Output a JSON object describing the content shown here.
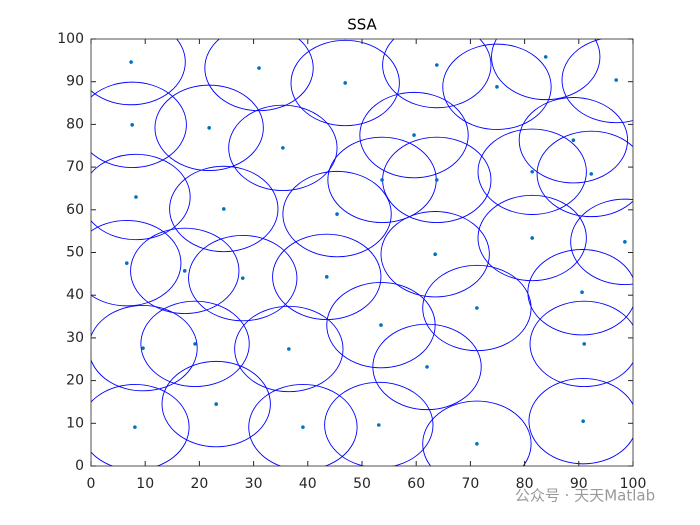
{
  "chart_data": {
    "type": "scatter",
    "title": "SSA",
    "xlim": [
      0,
      100
    ],
    "ylim": [
      0,
      100
    ],
    "xticks": [
      0,
      10,
      20,
      30,
      40,
      50,
      60,
      70,
      80,
      90,
      100
    ],
    "yticks": [
      0,
      10,
      20,
      30,
      40,
      50,
      60,
      70,
      80,
      90,
      100
    ],
    "grid": false,
    "radius": 10,
    "circle_color": "#0000ff",
    "series": [
      {
        "color": "#0072bd",
        "x": [
          7.4,
          31.0,
          46.9,
          63.8,
          74.9,
          83.9,
          96.9,
          7.6,
          21.8,
          35.4,
          59.6,
          53.7,
          63.8,
          81.4,
          89.0,
          92.3,
          8.3,
          24.5,
          45.4,
          63.5,
          81.4,
          98.5,
          6.6,
          17.3,
          28.0,
          43.5,
          90.6,
          71.2,
          53.5,
          9.6,
          19.2,
          36.5,
          62.0,
          91.0,
          23.1,
          8.1,
          39.1,
          53.1,
          71.2,
          90.8
        ],
        "y": [
          94.6,
          93.2,
          89.7,
          93.9,
          88.8,
          95.8,
          90.4,
          79.9,
          79.2,
          74.5,
          77.5,
          67.0,
          67.0,
          68.9,
          76.3,
          68.4,
          63.0,
          60.2,
          59.0,
          49.6,
          53.4,
          52.5,
          47.5,
          45.7,
          44.0,
          44.3,
          40.7,
          37.0,
          33.0,
          27.6,
          28.6,
          27.4,
          23.2,
          28.6,
          14.5,
          9.1,
          9.1,
          9.6,
          5.2,
          10.5
        ]
      }
    ],
    "watermark": "公众号 · 天天Matlab"
  }
}
